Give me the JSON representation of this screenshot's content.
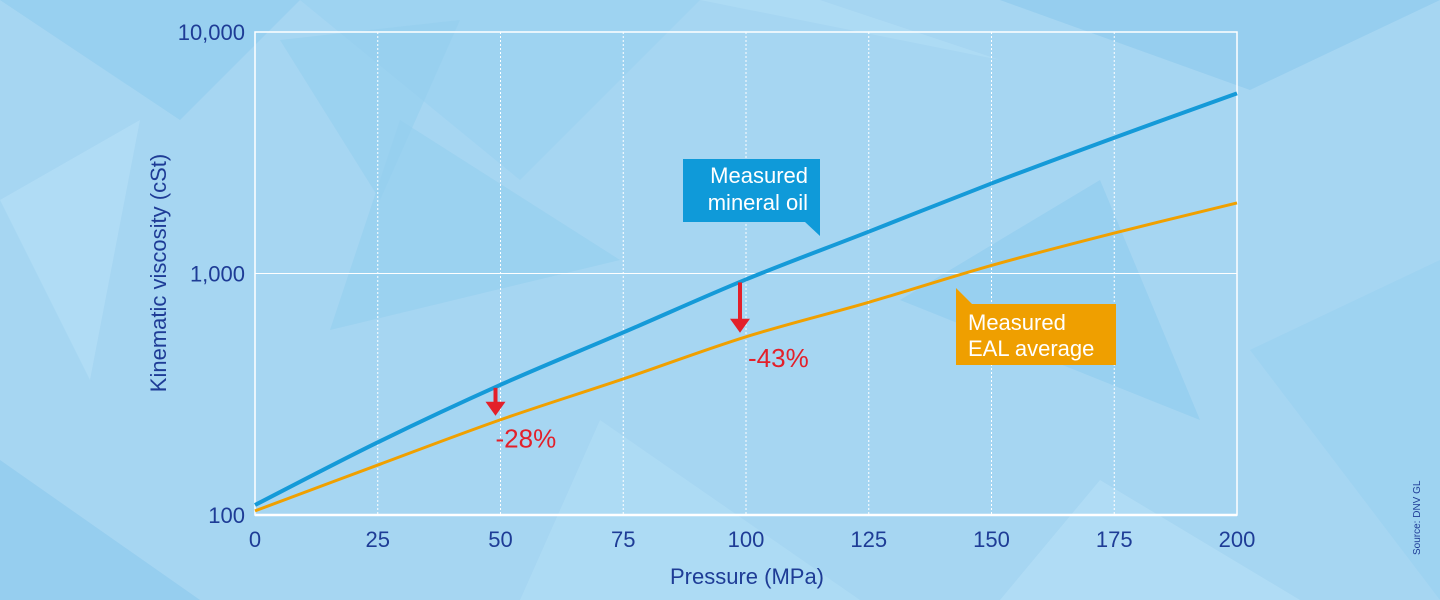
{
  "chart_data": {
    "type": "line",
    "title": "",
    "xlabel": "Pressure (MPa)",
    "ylabel": "Kinematic viscosity (cSt)",
    "xlim": [
      0,
      200
    ],
    "ylim": [
      100,
      10000
    ],
    "yscale": "log",
    "x_ticks": [
      "0",
      "25",
      "50",
      "75",
      "100",
      "125",
      "150",
      "175",
      "200"
    ],
    "y_ticks": [
      "100",
      "1,000",
      "10,000"
    ],
    "grid": "vertical dotted, horizontal at 1,000",
    "x": [
      0,
      25,
      50,
      75,
      100,
      125,
      150,
      175,
      200
    ],
    "series": [
      {
        "name": "Measured mineral oil",
        "color": "#159ad8",
        "values": [
          110,
          200,
          346,
          570,
          945,
          1490,
          2360,
          3650,
          5570
        ]
      },
      {
        "name": "Measured EAL average",
        "color": "#f0a000",
        "values": [
          104,
          161,
          248,
          366,
          547,
          760,
          1080,
          1470,
          1960
        ]
      }
    ],
    "annotations": [
      {
        "x": 50,
        "text": "-28%",
        "color": "#e3202a"
      },
      {
        "x": 100,
        "text": "-43%",
        "color": "#e3202a"
      }
    ],
    "source": "Source: DNV GL"
  }
}
